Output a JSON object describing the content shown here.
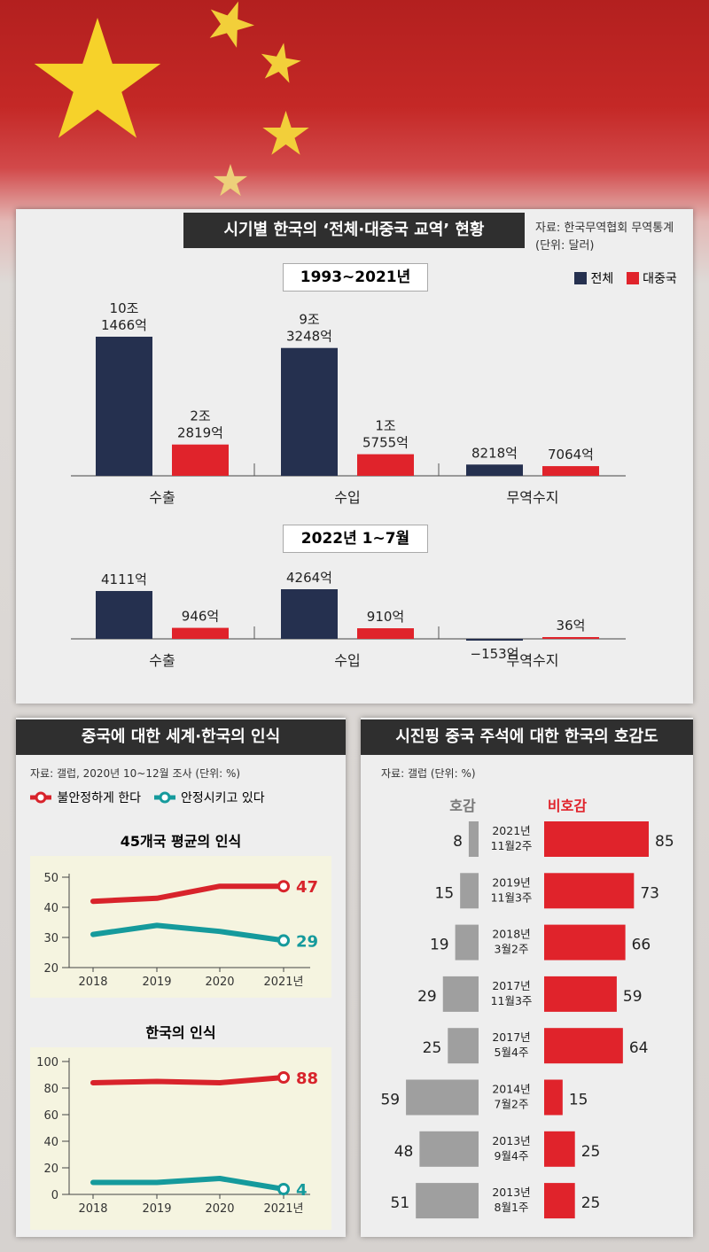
{
  "top_panel": {
    "title": "시기별 한국의 ‘전체·대중국 교역’ 현황",
    "source_line1": "자료: 한국무역협회 무역통계",
    "source_line2": "(단위: 달러)",
    "legend": [
      {
        "label": "전체",
        "color": "#25304f"
      },
      {
        "label": "대중국",
        "color": "#e0232b"
      }
    ]
  },
  "bottom_left": {
    "title": "중국에 대한 세계·한국의 인식",
    "source": "자료: 갤럽, 2020년 10~12월 조사 (단위: %)",
    "legend": [
      {
        "label": "불안정하게 한다",
        "color": "#d8232b"
      },
      {
        "label": "안정시키고 있다",
        "color": "#159a9c"
      }
    ]
  },
  "bottom_right": {
    "title": "시진핑 중국 주석에 대한 한국의 호감도",
    "source": "자료: 갤럽 (단위: %)"
  },
  "chart_data": [
    {
      "type": "bar",
      "title": "1993~2021년",
      "categories": [
        "수출",
        "수입",
        "무역수지"
      ],
      "series": [
        {
          "name": "전체",
          "values": [
            101466,
            93248,
            8218
          ],
          "labels": [
            "10조\n1466억",
            "9조\n3248억",
            "8218억"
          ]
        },
        {
          "name": "대중국",
          "values": [
            22819,
            15755,
            7064
          ],
          "labels": [
            "2조\n2819억",
            "1조\n5755억",
            "7064억"
          ]
        }
      ]
    },
    {
      "type": "bar",
      "title": "2022년 1~7월",
      "categories": [
        "수출",
        "수입",
        "무역수지"
      ],
      "series": [
        {
          "name": "전체",
          "values": [
            4111,
            4264,
            -153
          ],
          "labels": [
            "4111억",
            "4264억",
            "−153억"
          ]
        },
        {
          "name": "대중국",
          "values": [
            946,
            910,
            36
          ],
          "labels": [
            "946억",
            "910억",
            "36억"
          ]
        }
      ]
    },
    {
      "type": "line",
      "title": "45개국 평균의 인식",
      "x": [
        "2018",
        "2019",
        "2020",
        "2021년"
      ],
      "ylim": [
        20,
        50
      ],
      "yticks": [
        20,
        30,
        40,
        50
      ],
      "series": [
        {
          "name": "불안정하게 한다",
          "values": [
            42,
            43,
            47,
            47
          ],
          "end_label": "47"
        },
        {
          "name": "안정시키고 있다",
          "values": [
            31,
            34,
            32,
            29
          ],
          "end_label": "29"
        }
      ]
    },
    {
      "type": "line",
      "title": "한국의 인식",
      "x": [
        "2018",
        "2019",
        "2020",
        "2021년"
      ],
      "ylim": [
        0,
        100
      ],
      "yticks": [
        0,
        20,
        40,
        60,
        80,
        100
      ],
      "series": [
        {
          "name": "불안정하게 한다",
          "values": [
            84,
            85,
            84,
            88
          ],
          "end_label": "88"
        },
        {
          "name": "안정시키고 있다",
          "values": [
            9,
            9,
            12,
            4
          ],
          "end_label": "4"
        }
      ]
    },
    {
      "type": "bar",
      "orientation": "horizontal-diverging",
      "left_header": "호감",
      "right_header": "비호감",
      "categories": [
        [
          "2021년",
          "11월2주"
        ],
        [
          "2019년",
          "11월3주"
        ],
        [
          "2018년",
          "3월2주"
        ],
        [
          "2017년",
          "11월3주"
        ],
        [
          "2017년",
          "5월4주"
        ],
        [
          "2014년",
          "7월2주"
        ],
        [
          "2013년",
          "9월4주"
        ],
        [
          "2013년",
          "8월1주"
        ]
      ],
      "series": [
        {
          "name": "호감",
          "values": [
            8,
            15,
            19,
            29,
            25,
            59,
            48,
            51
          ]
        },
        {
          "name": "비호감",
          "values": [
            85,
            73,
            66,
            59,
            64,
            15,
            25,
            25
          ]
        }
      ]
    }
  ]
}
